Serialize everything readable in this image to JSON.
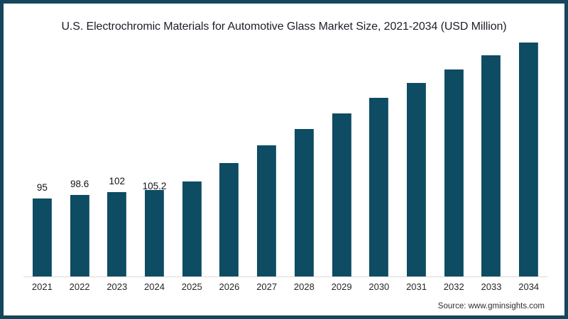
{
  "title": "U.S. Electrochromic Materials for Automotive Glass Market Size, 2021-2034 (USD Million)",
  "source": "Source: www.gminsights.com",
  "colors": {
    "bar": "#0d4c62",
    "frame_border": "#14465e",
    "axis_line": "#d9d9d9",
    "title_text": "#1e1e2a"
  },
  "chart_data": {
    "type": "bar",
    "title": "U.S. Electrochromic Materials for Automotive Glass Market Size, 2021-2034 (USD Million)",
    "xlabel": "",
    "ylabel": "USD Million",
    "categories": [
      "2021",
      "2022",
      "2023",
      "2024",
      "2025",
      "2026",
      "2027",
      "2028",
      "2029",
      "2030",
      "2031",
      "2032",
      "2033",
      "2034"
    ],
    "values": [
      95,
      98.6,
      102,
      105.2,
      115.5,
      137.5,
      159,
      178.5,
      198,
      217,
      235,
      251.5,
      268,
      283.5
    ],
    "data_labels": [
      "95",
      "98.6",
      "102",
      "105.2",
      "",
      "",
      "",
      "",
      "",
      "",
      "",
      "",
      "",
      ""
    ],
    "ylim": [
      0,
      300
    ],
    "grid": false,
    "legend": false,
    "bar_color": "#0d4c62",
    "note": "values for 2025-2034 estimated from bar heights; only 2021-2024 carry printed data labels"
  }
}
